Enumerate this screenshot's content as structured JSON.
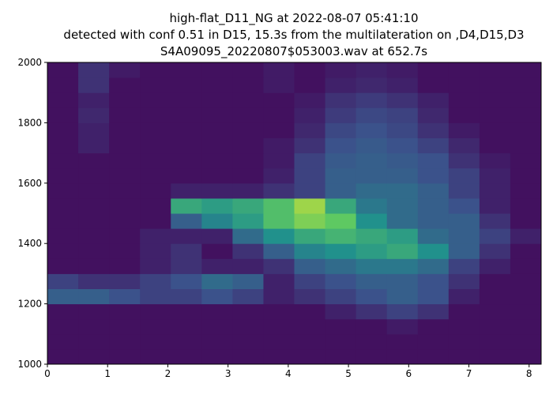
{
  "chart_data": {
    "type": "spectrogram",
    "title": [
      "high-flat_D11_NG at 2022-08-07 05:41:10",
      "detected with conf 0.51 in D15, 15.3s from the multilateration on ,D4,D15,D3",
      "S4A09095_20220807$053003.wav at 652.7s"
    ],
    "xlim": [
      0,
      8.2
    ],
    "ylim": [
      1000,
      2000
    ],
    "xticks": [
      0,
      1,
      2,
      3,
      4,
      5,
      6,
      7,
      8
    ],
    "yticks": [
      1000,
      1200,
      1400,
      1600,
      1800,
      2000
    ],
    "colormap": [
      "#440154",
      "#3b528b",
      "#21918c",
      "#5ec962",
      "#fde725"
    ],
    "z": [
      [
        0.05,
        0.05,
        0.05,
        0.05,
        0.05,
        0.05,
        0.05,
        0.05,
        0.05,
        0.05,
        0.05,
        0.05,
        0.05,
        0.05,
        0.05,
        0.05
      ],
      [
        0.05,
        0.05,
        0.05,
        0.05,
        0.05,
        0.05,
        0.05,
        0.05,
        0.05,
        0.05,
        0.05,
        0.05,
        0.05,
        0.05,
        0.05,
        0.05
      ],
      [
        0.05,
        0.05,
        0.05,
        0.05,
        0.05,
        0.05,
        0.05,
        0.05,
        0.05,
        0.05,
        0.05,
        0.08,
        0.05,
        0.05,
        0.05,
        0.05
      ],
      [
        0.05,
        0.05,
        0.05,
        0.05,
        0.05,
        0.05,
        0.05,
        0.05,
        0.05,
        0.1,
        0.15,
        0.2,
        0.15,
        0.05,
        0.05,
        0.05
      ],
      [
        0.3,
        0.3,
        0.25,
        0.2,
        0.2,
        0.25,
        0.2,
        0.1,
        0.15,
        0.2,
        0.25,
        0.3,
        0.25,
        0.1,
        0.05,
        0.05
      ],
      [
        0.2,
        0.15,
        0.15,
        0.2,
        0.25,
        0.35,
        0.3,
        0.1,
        0.2,
        0.25,
        0.3,
        0.3,
        0.25,
        0.15,
        0.05,
        0.05
      ],
      [
        0.05,
        0.05,
        0.05,
        0.1,
        0.15,
        0.1,
        0.1,
        0.15,
        0.3,
        0.35,
        0.4,
        0.4,
        0.35,
        0.2,
        0.1,
        0.05
      ],
      [
        0.05,
        0.05,
        0.05,
        0.1,
        0.15,
        0.05,
        0.15,
        0.3,
        0.45,
        0.5,
        0.55,
        0.6,
        0.5,
        0.3,
        0.15,
        0.05
      ],
      [
        0.05,
        0.05,
        0.05,
        0.1,
        0.1,
        0.1,
        0.35,
        0.5,
        0.6,
        0.65,
        0.6,
        0.55,
        0.35,
        0.3,
        0.2,
        0.1
      ],
      [
        0.05,
        0.05,
        0.05,
        0.05,
        0.3,
        0.45,
        0.55,
        0.7,
        0.8,
        0.75,
        0.5,
        0.35,
        0.3,
        0.3,
        0.15,
        0.05
      ],
      [
        0.05,
        0.05,
        0.05,
        0.05,
        0.6,
        0.55,
        0.6,
        0.7,
        0.85,
        0.6,
        0.4,
        0.35,
        0.3,
        0.25,
        0.1,
        0.05
      ],
      [
        0.05,
        0.05,
        0.05,
        0.05,
        0.1,
        0.1,
        0.1,
        0.15,
        0.2,
        0.3,
        0.35,
        0.35,
        0.3,
        0.2,
        0.1,
        0.05
      ],
      [
        0.05,
        0.05,
        0.05,
        0.05,
        0.05,
        0.05,
        0.05,
        0.1,
        0.2,
        0.3,
        0.3,
        0.3,
        0.25,
        0.2,
        0.1,
        0.05
      ],
      [
        0.05,
        0.05,
        0.05,
        0.05,
        0.05,
        0.05,
        0.05,
        0.08,
        0.2,
        0.28,
        0.3,
        0.28,
        0.25,
        0.15,
        0.08,
        0.05
      ],
      [
        0.05,
        0.1,
        0.05,
        0.05,
        0.05,
        0.05,
        0.05,
        0.08,
        0.15,
        0.25,
        0.28,
        0.25,
        0.2,
        0.12,
        0.05,
        0.05
      ],
      [
        0.05,
        0.1,
        0.05,
        0.05,
        0.05,
        0.05,
        0.05,
        0.05,
        0.12,
        0.22,
        0.25,
        0.22,
        0.15,
        0.08,
        0.05,
        0.05
      ],
      [
        0.05,
        0.12,
        0.05,
        0.05,
        0.05,
        0.05,
        0.05,
        0.05,
        0.1,
        0.18,
        0.22,
        0.2,
        0.12,
        0.05,
        0.05,
        0.05
      ],
      [
        0.05,
        0.1,
        0.05,
        0.05,
        0.05,
        0.05,
        0.05,
        0.05,
        0.08,
        0.15,
        0.18,
        0.15,
        0.1,
        0.05,
        0.05,
        0.05
      ],
      [
        0.05,
        0.15,
        0.05,
        0.05,
        0.05,
        0.05,
        0.05,
        0.08,
        0.05,
        0.1,
        0.12,
        0.1,
        0.05,
        0.05,
        0.05,
        0.05
      ],
      [
        0.05,
        0.15,
        0.08,
        0.05,
        0.05,
        0.05,
        0.05,
        0.08,
        0.05,
        0.08,
        0.1,
        0.08,
        0.05,
        0.05,
        0.05,
        0.05
      ]
    ]
  }
}
